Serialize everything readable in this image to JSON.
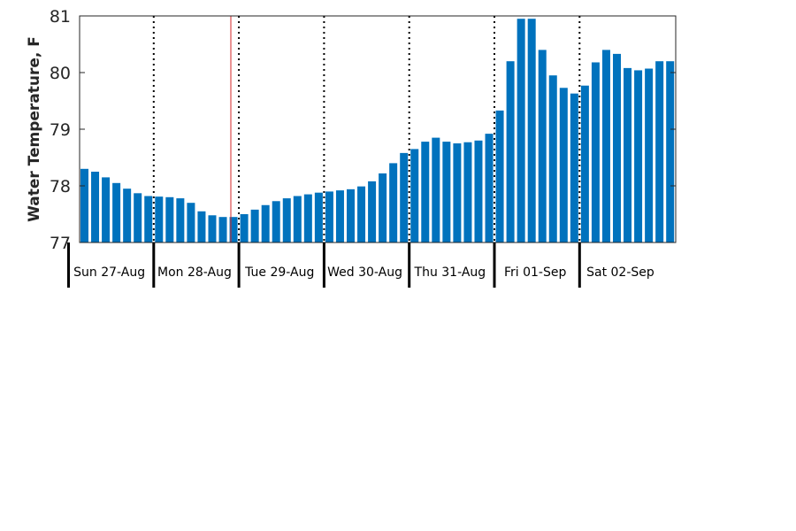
{
  "chart_data": {
    "type": "bar",
    "ylabel": "Water Temperature, F",
    "ylim": [
      77,
      81
    ],
    "yticks": [
      77,
      78,
      79,
      80,
      81
    ],
    "y_tick_labels": [
      "77",
      "78",
      "79",
      "80",
      "81"
    ],
    "day_labels": [
      "Sun 27-Aug",
      "Mon 28-Aug",
      "Tue 29-Aug",
      "Wed 30-Aug",
      "Thu 31-Aug",
      "Fri 01-Sep",
      "Sat 02-Sep"
    ],
    "values": [
      78.3,
      78.25,
      78.15,
      78.05,
      77.95,
      77.87,
      77.82,
      77.81,
      77.8,
      77.78,
      77.7,
      77.55,
      77.48,
      77.45,
      77.45,
      77.5,
      77.58,
      77.66,
      77.73,
      77.78,
      77.82,
      77.85,
      77.88,
      77.9,
      77.92,
      77.94,
      77.99,
      78.08,
      78.22,
      78.4,
      78.58,
      78.65,
      78.78,
      78.85,
      78.78,
      78.75,
      78.77,
      78.8,
      78.92,
      79.33,
      80.2,
      80.95,
      80.95,
      80.4,
      79.95,
      79.73,
      79.63,
      79.77,
      80.18,
      80.4,
      80.33,
      80.08,
      80.04,
      80.07,
      80.2,
      80.2
    ],
    "grid": false,
    "colors": {
      "bar": "#0072BD",
      "current_time_line": "#D62728",
      "day_divider": "#000000"
    }
  }
}
